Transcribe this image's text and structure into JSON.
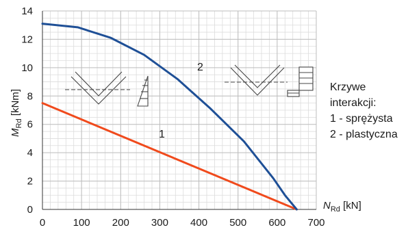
{
  "chart_data": {
    "type": "line",
    "xlabel": "N",
    "xlabel_sub": "Rd",
    "xlabel_unit": " [kN]",
    "ylabel": "M",
    "ylabel_sub": "Rd",
    "ylabel_unit": " [kNm]",
    "xlim": [
      0,
      700
    ],
    "ylim": [
      0,
      14
    ],
    "x_ticks": [
      "0",
      "100",
      "200",
      "300",
      "400",
      "500",
      "600",
      "700"
    ],
    "y_ticks": [
      "0",
      "2",
      "4",
      "6",
      "8",
      "10",
      "12",
      "14"
    ],
    "grid": true,
    "series": [
      {
        "name": "1",
        "color": "#f04a1c",
        "x": [
          0,
          650
        ],
        "y": [
          7.5,
          0
        ]
      },
      {
        "name": "2",
        "color": "#1e4f96",
        "x": [
          0,
          90,
          175,
          260,
          345,
          430,
          515,
          590,
          620,
          650
        ],
        "y": [
          13.1,
          12.85,
          12.1,
          10.9,
          9.2,
          7.1,
          4.8,
          2.2,
          1.0,
          0
        ]
      }
    ]
  },
  "legend": {
    "lines": [
      "Krzywe",
      "interakcji:",
      "1 - sprężysta",
      "2 - plastyczna"
    ]
  }
}
